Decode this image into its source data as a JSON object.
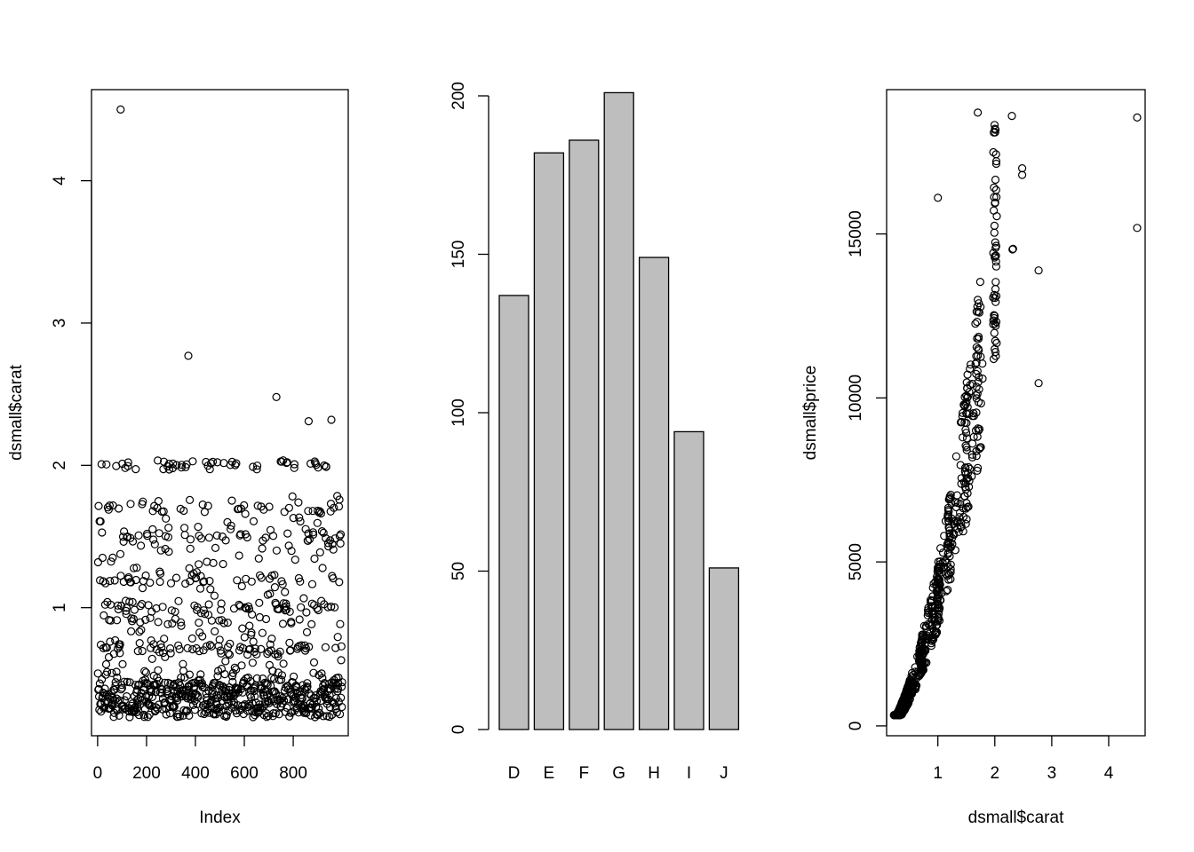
{
  "chart_data": [
    {
      "type": "scatter",
      "title": "",
      "xlabel": "Index",
      "ylabel": "dsmall$carat",
      "xlim": [
        -25,
        1025
      ],
      "ylim": [
        0.1,
        4.64
      ],
      "xticks": [
        0,
        200,
        400,
        600,
        800
      ],
      "xtick_labels": [
        "0",
        "200",
        "400",
        "600",
        "800"
      ],
      "yticks": [
        1,
        2,
        3,
        4
      ],
      "ytick_labels": [
        "1",
        "2",
        "3",
        "4"
      ],
      "marker": "open-circle",
      "point_color": "#000000",
      "notable_points": [
        {
          "x": 93,
          "y": 4.5
        },
        {
          "x": 370,
          "y": 2.77
        },
        {
          "x": 730,
          "y": 2.48
        },
        {
          "x": 955,
          "y": 2.32
        },
        {
          "x": 862,
          "y": 2.31
        }
      ],
      "n_points": 1000,
      "values_note": "Remaining 995 points are densely scattered; levels estimated from plot",
      "dense_levels": [
        0.3,
        0.31,
        0.4,
        0.5,
        0.53,
        0.7,
        0.72,
        0.9,
        1.0,
        1.01,
        1.2,
        1.5,
        1.7,
        2.0,
        2.01
      ]
    },
    {
      "type": "bar",
      "title": "",
      "xlabel": "",
      "ylabel": "",
      "categories": [
        "D",
        "E",
        "F",
        "G",
        "H",
        "I",
        "J"
      ],
      "values": [
        137,
        182,
        186,
        201,
        149,
        94,
        51
      ],
      "ylim": [
        0,
        201
      ],
      "yticks": [
        0,
        50,
        100,
        150,
        200
      ],
      "ytick_labels": [
        "0",
        "50",
        "100",
        "150",
        "200"
      ],
      "bar_color": "#bebebe"
    },
    {
      "type": "scatter",
      "title": "",
      "xlabel": "dsmall$carat",
      "ylabel": "dsmall$price",
      "xlim": [
        0.1,
        4.64
      ],
      "ylim": [
        -300,
        19400
      ],
      "xticks": [
        1,
        2,
        3,
        4
      ],
      "xtick_labels": [
        "1",
        "2",
        "3",
        "4"
      ],
      "yticks": [
        0,
        5000,
        10000,
        15000
      ],
      "ytick_labels": [
        "0",
        "5000",
        "10000",
        "15000"
      ],
      "marker": "open-circle",
      "point_color": "#000000",
      "notable_points": [
        {
          "x": 4.5,
          "y": 18550
        },
        {
          "x": 2.77,
          "y": 10450
        },
        {
          "x": 2.48,
          "y": 16800
        },
        {
          "x": 1.0,
          "y": 16100
        },
        {
          "x": 2.3,
          "y": 18600
        },
        {
          "x": 1.7,
          "y": 18700
        }
      ],
      "n_points": 1000,
      "values_note": "Remaining points follow a steep increasing carat–price relationship; estimated"
    }
  ]
}
